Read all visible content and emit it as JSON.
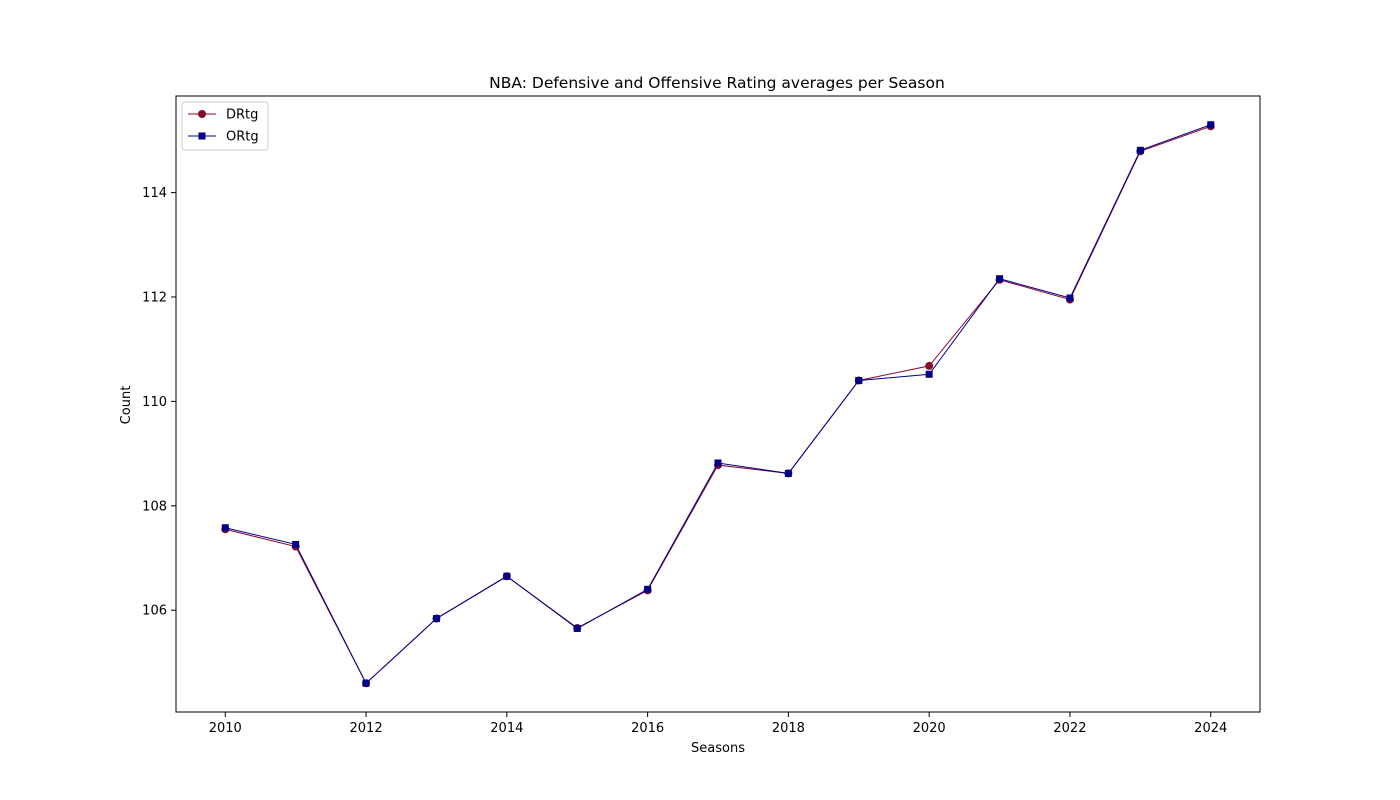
{
  "chart_data": {
    "type": "line",
    "title": "NBA: Defensive and Offensive Rating averages per Season",
    "xlabel": "Seasons",
    "ylabel": "Count",
    "x": [
      2010,
      2011,
      2012,
      2013,
      2014,
      2015,
      2016,
      2017,
      2018,
      2019,
      2020,
      2021,
      2022,
      2023,
      2024
    ],
    "xticks": [
      2010,
      2012,
      2014,
      2016,
      2018,
      2020,
      2022,
      2024
    ],
    "yticks": [
      106,
      108,
      110,
      112,
      114
    ],
    "xlim": [
      2009.3,
      2024.7
    ],
    "ylim": [
      104.05,
      115.85
    ],
    "grid": false,
    "legend_position": "top-left",
    "series": [
      {
        "name": "DRtg",
        "color": "#8b0a2a",
        "marker": "circle",
        "values": [
          107.55,
          107.22,
          104.6,
          105.84,
          106.65,
          105.66,
          106.38,
          108.78,
          108.62,
          110.4,
          110.68,
          112.33,
          111.95,
          114.79,
          115.27
        ]
      },
      {
        "name": "ORtg",
        "color": "#00008b",
        "marker": "square",
        "values": [
          107.58,
          107.26,
          104.6,
          105.84,
          106.65,
          105.65,
          106.4,
          108.82,
          108.62,
          110.4,
          110.52,
          112.35,
          111.98,
          114.81,
          115.3
        ]
      }
    ]
  }
}
